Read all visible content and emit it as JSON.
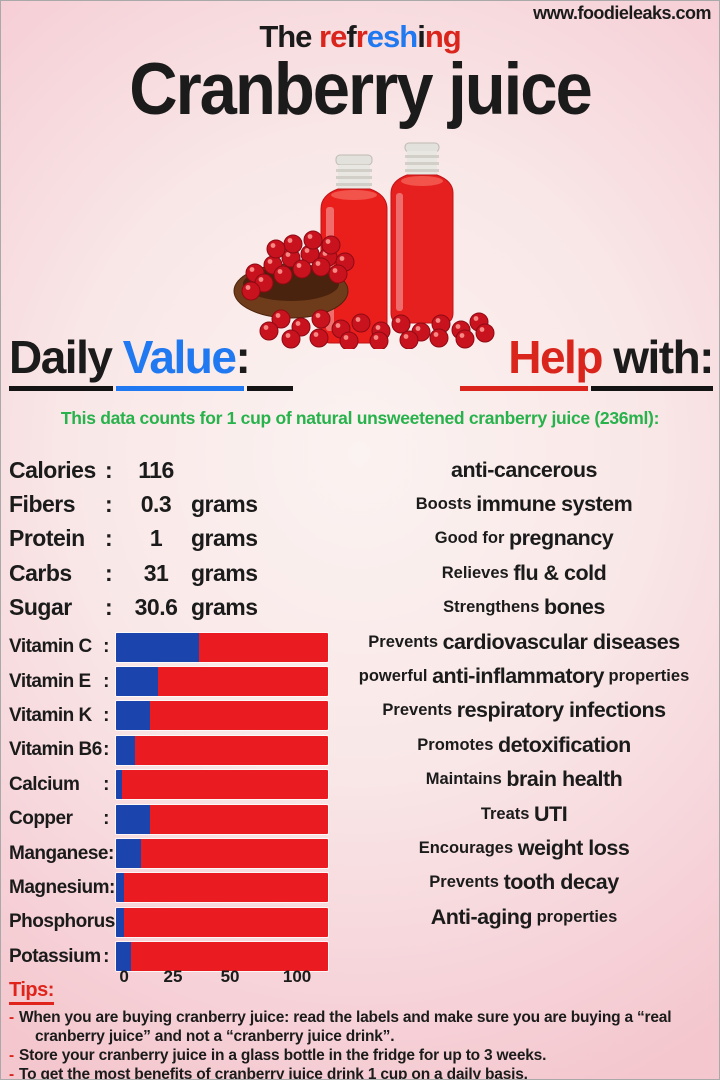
{
  "site_url": "www.foodieleaks.com",
  "header": {
    "subtitle_segments": [
      {
        "text": "The ",
        "color": "#1b1b1b"
      },
      {
        "text": "re",
        "color": "#d9251c"
      },
      {
        "text": "f",
        "color": "#1b1b1b"
      },
      {
        "text": "r",
        "color": "#d9251c"
      },
      {
        "text": "esh",
        "color": "#2079f0"
      },
      {
        "text": "i",
        "color": "#1b1b1b"
      },
      {
        "text": "ng",
        "color": "#d9251c"
      }
    ],
    "title": "Cranberry juice"
  },
  "headings": {
    "daily_value": {
      "word_black": "Daily ",
      "word_blue": "Value",
      "colon": ":"
    },
    "help_with": {
      "word_red": "Help ",
      "word_black": "with:"
    }
  },
  "serving_note": "This data counts for 1 cup of natural unsweetened cranberry juice (236ml):",
  "nutrition": {
    "rows": [
      {
        "label": "Calories",
        "value": "116",
        "unit": ""
      },
      {
        "label": "Fibers",
        "value": "0.3",
        "unit": "grams"
      },
      {
        "label": "Protein",
        "value": "1",
        "unit": "grams"
      },
      {
        "label": "Carbs",
        "value": "31",
        "unit": "grams"
      },
      {
        "label": "Sugar",
        "value": "30.6",
        "unit": "grams"
      }
    ]
  },
  "chart_data": {
    "type": "bar",
    "title": "Daily Value",
    "note": "Horizontal stacked bars: blue = filled daily-value portion, red = remainder; percentages estimated from bar fill",
    "categories": [
      "Vitamin C",
      "Vitamin E",
      "Vitamin K",
      "Vitamin B6",
      "Calcium",
      "Copper",
      "Manganese",
      "Magnesium",
      "Phosphorus",
      "Potassium"
    ],
    "values": [
      39,
      20,
      16,
      9,
      3,
      16,
      12,
      4,
      4,
      7
    ],
    "x_ticks": [
      "0",
      "25",
      "50",
      "100"
    ],
    "xlim": [
      0,
      100
    ],
    "bar_fill_color": "#1c44ad",
    "bar_track_color": "#ea1c22"
  },
  "benefits": [
    [
      {
        "text": "anti-cancerous",
        "em": true
      }
    ],
    [
      {
        "text": "Boosts ",
        "em": false
      },
      {
        "text": "immune system",
        "em": true
      }
    ],
    [
      {
        "text": "Good for ",
        "em": false
      },
      {
        "text": "pregnancy",
        "em": true
      }
    ],
    [
      {
        "text": "Relieves ",
        "em": false
      },
      {
        "text": "flu & cold",
        "em": true
      }
    ],
    [
      {
        "text": "Strengthens ",
        "em": false
      },
      {
        "text": "bones",
        "em": true
      }
    ],
    [
      {
        "text": "Prevents ",
        "em": false
      },
      {
        "text": "cardiovascular diseases",
        "em": true
      }
    ],
    [
      {
        "text": "powerful ",
        "em": false
      },
      {
        "text": "anti-inflammatory",
        "em": true
      },
      {
        "text": " properties",
        "em": false
      }
    ],
    [
      {
        "text": "Prevents ",
        "em": false
      },
      {
        "text": "respiratory infections",
        "em": true
      }
    ],
    [
      {
        "text": "Promotes ",
        "em": false
      },
      {
        "text": "detoxification",
        "em": true
      }
    ],
    [
      {
        "text": "Maintains ",
        "em": false
      },
      {
        "text": "brain health",
        "em": true
      }
    ],
    [
      {
        "text": "Treats ",
        "em": false
      },
      {
        "text": "UTI",
        "em": true
      }
    ],
    [
      {
        "text": "Encourages ",
        "em": false
      },
      {
        "text": "weight loss",
        "em": true
      }
    ],
    [
      {
        "text": "Prevents ",
        "em": false
      },
      {
        "text": "tooth decay",
        "em": true
      }
    ],
    [
      {
        "text": "Anti-aging",
        "em": true
      },
      {
        "text": " properties",
        "em": false
      }
    ]
  ],
  "tips": {
    "title": "Tips:",
    "dash": "-",
    "items": [
      "When you are buying cranberry juice: read the labels and make sure you are buying a “real cranberry juice” and not a “cranberry juice drink”.",
      "Store your cranberry juice in a glass bottle in the fridge for up to 3 weeks.",
      "To get the most benefits of cranberry juice drink 1 cup on a daily basis."
    ]
  },
  "ui": {
    "colon": ":"
  }
}
